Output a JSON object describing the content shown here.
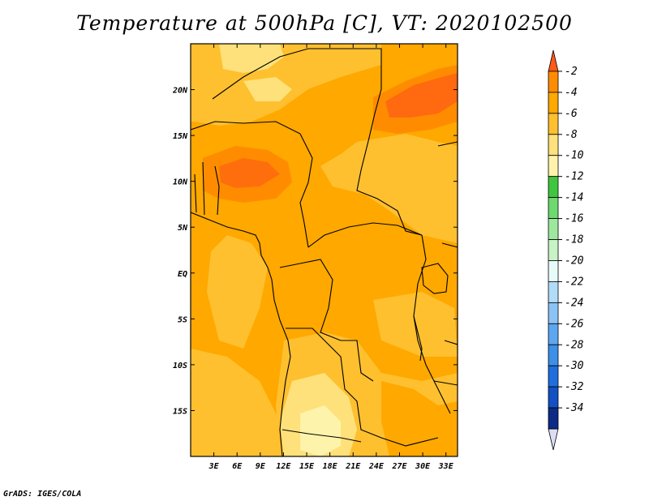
{
  "title": "Temperature at 500hPa [C], VT: 2020102500",
  "credit": "GrADS: IGES/COLA",
  "map": {
    "lon_range": [
      0,
      34.5
    ],
    "lat_range": [
      -20,
      25
    ],
    "lon_ticks": [
      {
        "v": 3,
        "t": "3E"
      },
      {
        "v": 6,
        "t": "6E"
      },
      {
        "v": 9,
        "t": "9E"
      },
      {
        "v": 12,
        "t": "12E"
      },
      {
        "v": 15,
        "t": "15E"
      },
      {
        "v": 18,
        "t": "18E"
      },
      {
        "v": 21,
        "t": "21E"
      },
      {
        "v": 24,
        "t": "24E"
      },
      {
        "v": 27,
        "t": "27E"
      },
      {
        "v": 30,
        "t": "30E"
      },
      {
        "v": 33,
        "t": "33E"
      }
    ],
    "lat_ticks": [
      {
        "v": 20,
        "t": "20N"
      },
      {
        "v": 15,
        "t": "15N"
      },
      {
        "v": 10,
        "t": "10N"
      },
      {
        "v": 5,
        "t": "5N"
      },
      {
        "v": 0,
        "t": "EQ"
      },
      {
        "v": -5,
        "t": "5S"
      },
      {
        "v": -10,
        "t": "10S"
      },
      {
        "v": -15,
        "t": "15S"
      }
    ]
  },
  "colorbar": {
    "levels": [
      "-2",
      "-4",
      "-6",
      "-8",
      "-10",
      "-12",
      "-14",
      "-16",
      "-18",
      "-20",
      "-22",
      "-24",
      "-26",
      "-28",
      "-30",
      "-32",
      "-34"
    ],
    "colors": [
      "#ff5a16",
      "#ff8c00",
      "#fea800",
      "#fec02f",
      "#fee17a",
      "#fef3aa",
      "#3fc63f",
      "#6ed96e",
      "#9ee89e",
      "#c7f3c7",
      "#e8fbfb",
      "#b1dcf8",
      "#8bc3f5",
      "#5ca7ef",
      "#3d8fe8",
      "#1e6ede",
      "#1350c4",
      "#0c2a86",
      "#dcdcf4"
    ]
  }
}
